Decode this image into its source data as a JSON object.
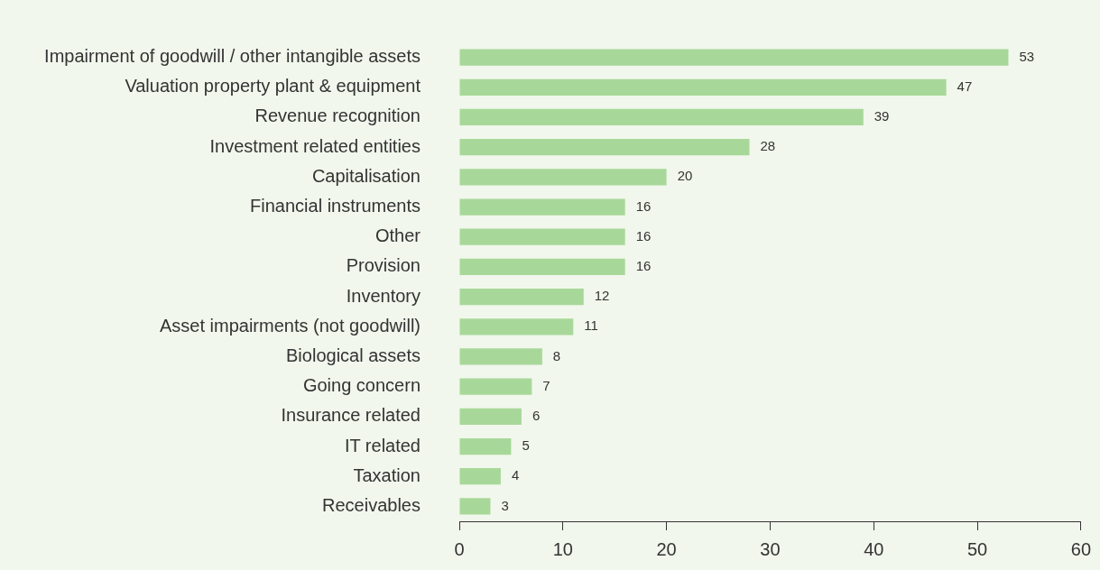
{
  "chart_data": {
    "type": "bar",
    "orientation": "horizontal",
    "categories": [
      "Impairment of goodwill / other intangible assets",
      "Valuation property plant & equipment",
      "Revenue recognition",
      "Investment related entities",
      "Capitalisation",
      "Financial instruments",
      "Other",
      "Provision",
      "Inventory",
      "Asset impairments (not goodwill)",
      "Biological assets",
      "Going concern",
      "Insurance related",
      "IT related",
      "Taxation",
      "Receivables"
    ],
    "values": [
      53,
      47,
      39,
      28,
      20,
      16,
      16,
      16,
      12,
      11,
      8,
      7,
      6,
      5,
      4,
      3
    ],
    "color": "#a8d899",
    "xlim": [
      0,
      60
    ],
    "xticks": [
      0,
      10,
      20,
      30,
      40,
      50,
      60
    ],
    "data_labels": true,
    "grid": false,
    "legend": false
  }
}
